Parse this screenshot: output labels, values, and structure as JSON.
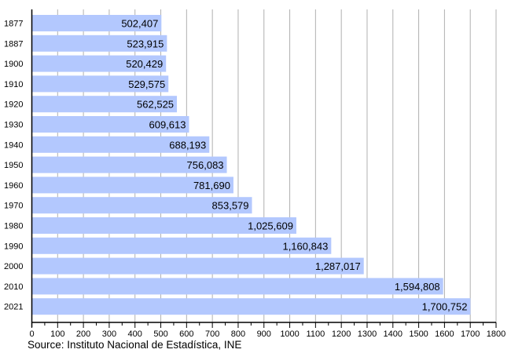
{
  "chart_data": {
    "type": "bar",
    "orientation": "horizontal",
    "categories": [
      "1877",
      "1887",
      "1900",
      "1910",
      "1920",
      "1930",
      "1940",
      "1950",
      "1960",
      "1970",
      "1980",
      "1990",
      "2000",
      "2010",
      "2021"
    ],
    "values": [
      502407,
      523915,
      520429,
      529575,
      562525,
      609613,
      688193,
      756083,
      781690,
      853579,
      1025609,
      1160843,
      1287017,
      1594808,
      1700752
    ],
    "value_labels": [
      "502,407",
      "523,915",
      "520,429",
      "529,575",
      "562,525",
      "609,613",
      "688,193",
      "756,083",
      "781,690",
      "853,579",
      "1,025,609",
      "1,160,843",
      "1,287,017",
      "1,594,808",
      "1,700,752"
    ],
    "xticks": [
      0,
      100,
      200,
      300,
      400,
      500,
      600,
      700,
      800,
      900,
      1000,
      1100,
      1200,
      1300,
      1400,
      1500,
      1600,
      1700,
      1800
    ],
    "xlim": [
      0,
      1800
    ],
    "x_unit_divisor": 1000,
    "grid": true,
    "bar_color": "#b3c8fe",
    "grid_color": "#b0b0b0",
    "source": "Source: Instituto Nacional de Estadística, INE"
  }
}
